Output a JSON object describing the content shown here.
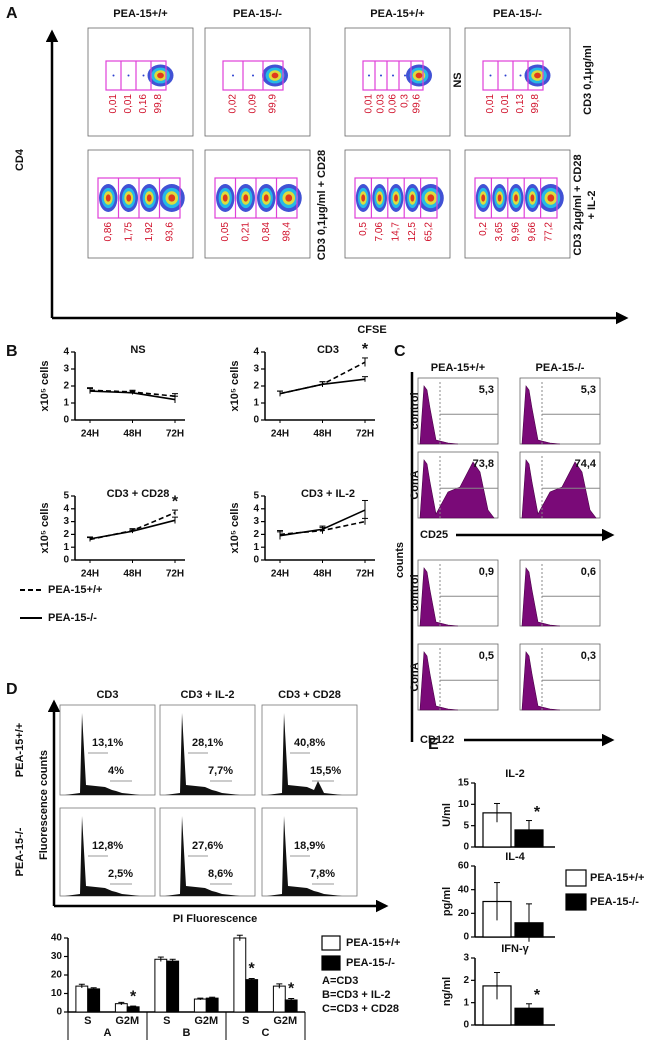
{
  "panel_a": {
    "label": "A",
    "columns": [
      "PEA-15+/+",
      "PEA-15-/-",
      "PEA-15+/+",
      "PEA-15-/-"
    ],
    "y_label": "CD4",
    "x_label": "CFSE",
    "row_labels": [
      [
        "NS"
      ],
      [
        "CD3 0,1μg/ml"
      ],
      [
        "CD3 0,1μg/ml + CD28"
      ],
      [
        "CD3 2μg/ml + CD28",
        "+ IL-2"
      ]
    ],
    "plots": [
      {
        "gates": [
          "0,01",
          "0,01",
          "0,16",
          "99,8"
        ]
      },
      {
        "gates": [
          "0,02",
          "0,09",
          "99,9"
        ]
      },
      {
        "gates": [
          "0,01",
          "0,03",
          "0,06",
          "0,3",
          "99,6"
        ]
      },
      {
        "gates": [
          "0,01",
          "0,01",
          "0,13",
          "99,8"
        ]
      },
      {
        "gates": [
          "0,86",
          "1,75",
          "1,92",
          "93,6"
        ]
      },
      {
        "gates": [
          "0,05",
          "0,21",
          "0,84",
          "98,4"
        ]
      },
      {
        "gates": [
          "0,5",
          "7,06",
          "14,7",
          "12,5",
          "65,2"
        ]
      },
      {
        "gates": [
          "0,2",
          "3,65",
          "9,96",
          "9,66",
          "77,2"
        ]
      }
    ]
  },
  "panel_c": {
    "label": "C",
    "columns": [
      "PEA-15+/+",
      "PEA-15-/-"
    ],
    "y_label": "counts",
    "markers": [
      "CD25",
      "CD122"
    ],
    "rows": [
      {
        "label": "control",
        "values": [
          "5,3",
          "5,3"
        ]
      },
      {
        "label": "ConA",
        "values": [
          "73,8",
          "74,4"
        ]
      },
      {
        "label": "control",
        "values": [
          "0,9",
          "0,6"
        ]
      },
      {
        "label": "ConA",
        "values": [
          "0,5",
          "0,3"
        ]
      }
    ]
  },
  "panel_d": {
    "label": "D",
    "columns": [
      "CD3",
      "CD3 + IL-2",
      "CD3 + CD28"
    ],
    "y_label": "Fluorescence counts",
    "x_label": "PI Fluorescence",
    "rows": [
      {
        "label": "PEA-15+/+",
        "values": [
          [
            "13,1%",
            "4%"
          ],
          [
            "28,1%",
            "7,7%"
          ],
          [
            "40,8%",
            "15,5%"
          ]
        ]
      },
      {
        "label": "PEA-15-/-",
        "values": [
          [
            "12,8%",
            "2,5%"
          ],
          [
            "27,6%",
            "8,6%"
          ],
          [
            "18,9%",
            "7,8%"
          ]
        ]
      }
    ]
  },
  "chart_data": [
    {
      "type": "line",
      "label": "B",
      "y_label": "x10⁵ cells",
      "categories": [
        "24H",
        "48H",
        "72H"
      ],
      "legend": [
        {
          "name": "PEA-15+/+",
          "style": "dashed"
        },
        {
          "name": "PEA-15-/-",
          "style": "solid"
        }
      ],
      "panels": [
        {
          "title": "NS",
          "ylim": [
            0,
            4
          ],
          "yticks": [
            0,
            1,
            2,
            3,
            4
          ],
          "series": [
            {
              "values": [
                1.75,
                1.65,
                1.4
              ],
              "errors": [
                0.15,
                0.1,
                0.15
              ]
            },
            {
              "values": [
                1.7,
                1.6,
                1.2
              ],
              "errors": [
                0.15,
                0.1,
                0.2
              ]
            }
          ]
        },
        {
          "title": "CD3",
          "ylim": [
            0,
            4
          ],
          "yticks": [
            0,
            1,
            2,
            3,
            4
          ],
          "series": [
            {
              "values": [
                1.55,
                2.1,
                3.4
              ],
              "errors": [
                0.15,
                0.15,
                0.25
              ]
            },
            {
              "values": [
                1.55,
                2.1,
                2.4
              ],
              "errors": [
                0.15,
                0.15,
                0.15
              ]
            }
          ],
          "annotations": [
            null,
            null,
            "*"
          ]
        },
        {
          "title": "CD3 + CD28",
          "ylim": [
            0,
            5
          ],
          "yticks": [
            0,
            1,
            2,
            3,
            4,
            5
          ],
          "series": [
            {
              "values": [
                1.6,
                2.3,
                3.7
              ],
              "errors": [
                0.15,
                0.15,
                0.2
              ]
            },
            {
              "values": [
                1.65,
                2.25,
                3.1
              ],
              "errors": [
                0.15,
                0.15,
                0.25
              ]
            }
          ],
          "annotations": [
            null,
            null,
            "*"
          ]
        },
        {
          "title": "CD3 + IL-2",
          "ylim": [
            0,
            5
          ],
          "yticks": [
            0,
            1,
            2,
            3,
            4,
            5
          ],
          "series": [
            {
              "values": [
                2.0,
                2.3,
                3.0
              ],
              "errors": [
                0.3,
                0.25,
                0.25
              ]
            },
            {
              "values": [
                1.9,
                2.4,
                3.9
              ],
              "errors": [
                0.3,
                0.25,
                0.75
              ]
            }
          ]
        }
      ]
    },
    {
      "type": "bar",
      "categories": [
        "S",
        "G2M",
        "S",
        "G2M",
        "S",
        "G2M"
      ],
      "groups": [
        "A",
        "B",
        "C"
      ],
      "ylim": [
        0,
        40
      ],
      "yticks": [
        0,
        10,
        20,
        30,
        40
      ],
      "series": [
        {
          "name": "PEA-15+/+",
          "color": "#ffffff",
          "values": [
            14,
            4.5,
            28.5,
            7,
            40,
            14
          ],
          "errors": [
            1,
            0.7,
            1.2,
            0.5,
            1.5,
            1.2
          ]
        },
        {
          "name": "PEA-15-/-",
          "color": "#000000",
          "values": [
            12.5,
            2.8,
            27.5,
            7.5,
            17.5,
            6.5
          ],
          "errors": [
            0.6,
            0.4,
            1,
            0.5,
            0.6,
            0.8
          ]
        }
      ],
      "annotations": [
        null,
        "*",
        null,
        null,
        "*",
        "*"
      ],
      "key": [
        "A=CD3",
        "B=CD3 + IL-2",
        "C=CD3  + CD28"
      ]
    },
    {
      "type": "bar_panels",
      "label": "E",
      "series": [
        {
          "name": "PEA-15+/+",
          "color": "#ffffff"
        },
        {
          "name": "PEA-15-/-",
          "color": "#000000"
        }
      ],
      "panels": [
        {
          "title": "IL-2",
          "unit": "U/ml",
          "ylim": [
            0,
            15
          ],
          "yticks": [
            0,
            5,
            10,
            15
          ],
          "values": [
            8,
            4
          ],
          "errors": [
            2.2,
            2.2
          ],
          "annotations": [
            null,
            "*"
          ]
        },
        {
          "title": "IL-4",
          "unit": "pg/ml",
          "ylim": [
            0,
            60
          ],
          "yticks": [
            0,
            20,
            40,
            60
          ],
          "values": [
            30,
            12
          ],
          "errors": [
            16,
            16
          ],
          "annotations": [
            null,
            null
          ]
        },
        {
          "title": "IFN-γ",
          "unit": "ng/ml",
          "ylim": [
            0,
            3
          ],
          "yticks": [
            0,
            1,
            2,
            3
          ],
          "values": [
            1.75,
            0.75
          ],
          "errors": [
            0.6,
            0.2
          ],
          "annotations": [
            null,
            "*"
          ]
        }
      ]
    }
  ]
}
